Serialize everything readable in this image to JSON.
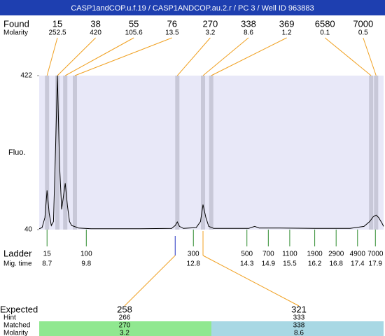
{
  "header": {
    "title": "CASP1andCOP.u.f.19 / CASP1ANDCOP.au.2.r / PC 3 / Well ID 963883"
  },
  "found": {
    "label": "Found",
    "molarity_label": "Molarity",
    "peaks": [
      {
        "size": 15,
        "molarity": 252.5,
        "time": 8.7
      },
      {
        "size": 38,
        "molarity": 420,
        "time": 8.99
      },
      {
        "size": 55,
        "molarity": 105.6,
        "time": 9.21
      },
      {
        "size": 76,
        "molarity": 13.5,
        "time": 9.48
      },
      {
        "size": 270,
        "molarity": 3.2,
        "time": 12.35
      },
      {
        "size": 338,
        "molarity": 8.6,
        "time": 13.07
      },
      {
        "size": 369,
        "molarity": 1.2,
        "time": 13.3
      },
      {
        "size": 6580,
        "molarity": 0.1,
        "time": 17.78
      },
      {
        "size": 7000,
        "molarity": 0.5,
        "time": 17.92
      }
    ]
  },
  "trace": {
    "y_label": "Fluo.",
    "ylim": [
      40,
      422
    ],
    "yticks": [
      422,
      40
    ],
    "xlim": [
      8.48,
      18.13
    ],
    "color": "#000000",
    "x": [
      8.48,
      8.56,
      8.64,
      8.7,
      8.76,
      8.82,
      8.88,
      8.94,
      8.99,
      9.05,
      9.11,
      9.17,
      9.21,
      9.27,
      9.33,
      9.39,
      9.46,
      9.58,
      9.94,
      11.31,
      12.19,
      12.29,
      12.35,
      12.41,
      12.52,
      12.88,
      13.0,
      13.07,
      13.15,
      13.23,
      13.37,
      14.35,
      14.45,
      14.52,
      14.64,
      15.23,
      16.21,
      17.19,
      17.58,
      17.74,
      17.84,
      17.92,
      17.99,
      18.09,
      18.13
    ],
    "values": [
      42,
      45,
      70,
      137,
      80,
      50,
      60,
      250,
      422,
      200,
      90,
      130,
      155,
      100,
      60,
      50,
      48,
      44,
      42,
      42,
      43,
      50,
      59,
      48,
      43,
      45,
      60,
      102,
      70,
      48,
      43,
      43,
      46,
      48,
      44,
      44,
      43,
      43,
      48,
      60,
      72,
      76,
      70,
      55,
      48
    ]
  },
  "ladder": {
    "label": "Ladder",
    "time_label": "Mig. time",
    "color": "#2e8b2e",
    "sizes": [
      15,
      100,
      300,
      500,
      700,
      1100,
      1900,
      2900,
      4900,
      7000
    ],
    "times": [
      8.7,
      9.8,
      12.8,
      14.3,
      14.9,
      15.5,
      16.2,
      16.8,
      17.4,
      17.9
    ]
  },
  "expected": {
    "label": "Expected",
    "hint_label": "Hint",
    "matched_label": "Matched",
    "molarity_label": "Molarity",
    "items": [
      {
        "size": 258,
        "hint": 266,
        "matched": 270,
        "molarity": 3.2,
        "time": 12.29,
        "color": "#90e890"
      },
      {
        "size": 321,
        "hint": 333,
        "matched": 338,
        "molarity": 8.6,
        "time": 13.07,
        "color": "#a8d8e4"
      }
    ]
  }
}
